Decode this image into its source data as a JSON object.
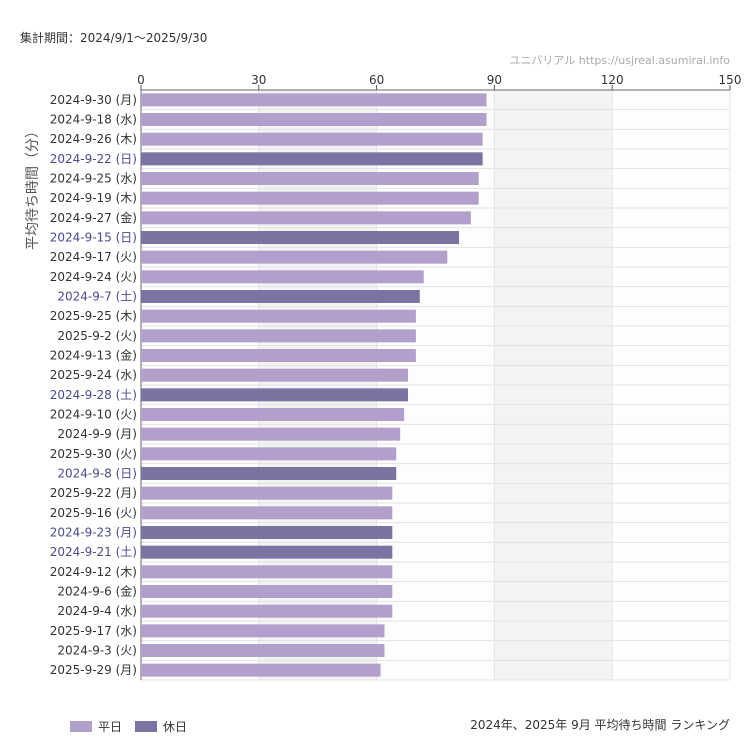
{
  "header": {
    "period": "集計期間：2024/9/1〜2025/9/30",
    "credit": "ユニバリアル  https://usjreal.asumirai.info"
  },
  "footer": {
    "title": "2024年、2025年 9月 平均待ち時間 ランキング"
  },
  "colors": {
    "weekday": "#b39fcc",
    "holiday": "#7b74a3",
    "holiday_label": "#4b4b8f",
    "label": "#333333"
  },
  "chart_data": {
    "type": "bar",
    "orientation": "horizontal",
    "xlabel": "",
    "ylabel": "平均待ち時間（分）",
    "xlim": [
      0,
      150
    ],
    "xticks": [
      0,
      30,
      60,
      90,
      120,
      150
    ],
    "xaxis_position": "top",
    "grid": true,
    "legend_placement": "bottom-left",
    "legend": [
      {
        "name": "平日",
        "key": "weekday"
      },
      {
        "name": "休日",
        "key": "holiday"
      }
    ],
    "categories": [
      "2024-9-30 (月)",
      "2024-9-18 (水)",
      "2024-9-26 (木)",
      "2024-9-22 (日)",
      "2024-9-25 (水)",
      "2024-9-19 (木)",
      "2024-9-27 (金)",
      "2024-9-15 (日)",
      "2024-9-17 (火)",
      "2024-9-24 (火)",
      "2024-9-7 (土)",
      "2025-9-25 (木)",
      "2025-9-2 (火)",
      "2024-9-13 (金)",
      "2025-9-24 (水)",
      "2024-9-28 (土)",
      "2024-9-10 (火)",
      "2024-9-9 (月)",
      "2025-9-30 (火)",
      "2024-9-8 (日)",
      "2025-9-22 (月)",
      "2025-9-16 (火)",
      "2024-9-23 (月)",
      "2024-9-21 (土)",
      "2024-9-12 (木)",
      "2024-9-6 (金)",
      "2024-9-4 (水)",
      "2025-9-17 (水)",
      "2024-9-3 (火)",
      "2025-9-29 (月)"
    ],
    "values": [
      88,
      88,
      87,
      87,
      86,
      86,
      84,
      81,
      78,
      72,
      71,
      70,
      70,
      70,
      68,
      68,
      67,
      66,
      65,
      65,
      64,
      64,
      64,
      64,
      64,
      64,
      64,
      62,
      62,
      61
    ],
    "holiday": [
      false,
      false,
      false,
      true,
      false,
      false,
      false,
      true,
      false,
      false,
      true,
      false,
      false,
      false,
      false,
      true,
      false,
      false,
      false,
      true,
      false,
      false,
      true,
      true,
      false,
      false,
      false,
      false,
      false,
      false
    ]
  }
}
